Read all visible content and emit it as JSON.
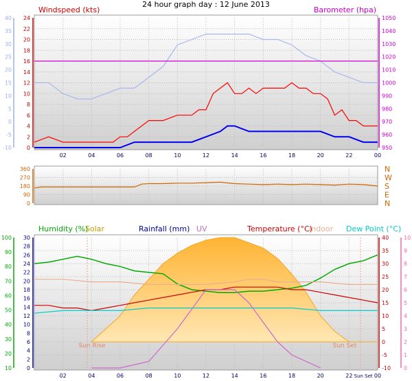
{
  "header": {
    "title": "24 hour graph day : 12 June 2013"
  },
  "chart_data": [
    {
      "panel": "wind",
      "type": "line",
      "left_axis": {
        "label": "Windspeed (kts)",
        "color": "#cc0000",
        "ticks": [
          0,
          2,
          4,
          6,
          8,
          10,
          12,
          14,
          16,
          18,
          20,
          22,
          24
        ]
      },
      "far_left_axis": {
        "color": "#9bb0e8",
        "ticks": [
          -10,
          -5,
          0,
          5,
          10,
          15,
          20,
          25,
          30,
          35,
          40
        ]
      },
      "right_axis": {
        "label": "Barometer (hpa)",
        "color": "#cc00cc",
        "ticks": [
          950,
          960,
          970,
          980,
          990,
          1000,
          1010,
          1020,
          1030,
          1040,
          1050
        ]
      },
      "x_ticks": [
        "02",
        "04",
        "06",
        "08",
        "10",
        "12",
        "14",
        "16",
        "18",
        "20",
        "22",
        "00"
      ],
      "series": [
        {
          "color": "#ff0000",
          "x": [
            0,
            1,
            2,
            3,
            4,
            5,
            5.5,
            6,
            6.5,
            7,
            7.5,
            8,
            9,
            10,
            11,
            11.5,
            12,
            12.5,
            13,
            13.5,
            14,
            14.5,
            15,
            15.5,
            16,
            16.5,
            17,
            17.5,
            18,
            18.5,
            19,
            19.5,
            20,
            20.5,
            21,
            21.5,
            22,
            22.5,
            23,
            23.5,
            24
          ],
          "y": [
            1,
            2,
            1,
            1,
            1,
            1,
            1,
            2,
            2,
            3,
            4,
            5,
            5,
            6,
            6,
            7,
            7,
            10,
            11,
            12,
            10,
            10,
            11,
            10,
            11,
            11,
            11,
            11,
            12,
            11,
            11,
            10,
            10,
            9,
            6,
            7,
            5,
            5,
            4,
            4,
            4
          ]
        },
        {
          "color": "#0000ee",
          "x": [
            0,
            2,
            4,
            5,
            6,
            7,
            8,
            9,
            10,
            11,
            12,
            13,
            13.5,
            14,
            15,
            16,
            17,
            18,
            19,
            20,
            21,
            22,
            23,
            24
          ],
          "y": [
            0,
            0,
            0,
            0,
            0,
            1,
            1,
            1,
            1,
            1,
            2,
            3,
            4,
            4,
            3,
            3,
            3,
            3,
            3,
            3,
            2,
            2,
            1,
            1
          ]
        },
        {
          "color": "#a8b8ec",
          "x": [
            0,
            1,
            2,
            3,
            4,
            5,
            6,
            7,
            8,
            9,
            10,
            11,
            12,
            13,
            14,
            15,
            16,
            17,
            18,
            19,
            20,
            21,
            22,
            23,
            24
          ],
          "y": [
            12,
            12,
            10,
            9,
            9,
            10,
            11,
            11,
            13,
            15,
            19,
            20,
            21,
            21,
            21,
            21,
            20,
            20,
            19,
            17,
            16,
            14,
            13,
            12,
            12
          ]
        },
        {
          "color": "#cc00cc",
          "x": [
            0,
            24
          ],
          "y": [
            16,
            16
          ]
        }
      ]
    },
    {
      "panel": "direction",
      "type": "line",
      "left_ticks": [
        0,
        90,
        180,
        270,
        360
      ],
      "compass": [
        "N",
        "W",
        "S",
        "E",
        "N"
      ],
      "series": [
        {
          "color": "#cc6600",
          "x": [
            0,
            0.5,
            1,
            2,
            3,
            4,
            5,
            6,
            7,
            7.5,
            8,
            9,
            10,
            11,
            12,
            13,
            14,
            15,
            16,
            17,
            18,
            19,
            20,
            21,
            22,
            23,
            24
          ],
          "y": [
            160,
            170,
            170,
            170,
            170,
            170,
            170,
            170,
            170,
            200,
            205,
            205,
            210,
            210,
            215,
            220,
            205,
            200,
            195,
            200,
            195,
            200,
            195,
            190,
            200,
            195,
            180
          ]
        }
      ]
    },
    {
      "panel": "temp",
      "type": "line",
      "legend": [
        "Humidity (%)",
        "Solar",
        "Rainfall (mm)",
        "UV",
        "Temperature (°C)",
        "Indoor",
        "Dew Point (°C)"
      ],
      "legend_colors": [
        "#00aa00",
        "#cc9900",
        "#000099",
        "#cc66cc",
        "#cc0000",
        "#e8b08f",
        "#00cccc"
      ],
      "humidity_ticks": [
        10,
        20,
        30,
        40,
        50,
        60,
        70,
        80,
        90,
        100
      ],
      "rain_ticks": [
        0,
        2,
        4,
        6,
        8,
        10,
        12,
        14,
        16,
        18,
        20,
        22,
        24,
        26,
        28,
        30
      ],
      "temp_ticks": [
        -10,
        -5,
        0,
        5,
        10,
        15,
        20,
        25,
        30,
        35,
        40
      ],
      "uv_ticks": [
        0,
        1,
        2,
        3,
        4,
        5,
        6,
        7,
        8,
        9,
        10
      ],
      "x_ticks": [
        "02",
        "04",
        "06",
        "08",
        "10",
        "12",
        "14",
        "16",
        "18",
        "20",
        "22",
        "Sun Set",
        "00"
      ],
      "sunrise_label": "Sun Rise",
      "sunset_label": "Sun Set",
      "series": [
        {
          "name": "Humidity (%)",
          "color": "#00aa00",
          "x": [
            0,
            1,
            2,
            3,
            4,
            5,
            6,
            7,
            8,
            9,
            10,
            11,
            12,
            13,
            14,
            15,
            16,
            17,
            18,
            19,
            20,
            21,
            22,
            23,
            24
          ],
          "y": [
            82,
            83,
            85,
            87,
            85,
            82,
            80,
            77,
            76,
            75,
            68,
            64,
            63,
            62,
            62,
            63,
            63,
            64,
            65,
            67,
            72,
            78,
            82,
            84,
            88
          ]
        },
        {
          "name": "Temperature (°C)",
          "color": "#cc0000",
          "x": [
            0,
            1,
            2,
            3,
            4,
            5,
            6,
            7,
            8,
            9,
            10,
            11,
            12,
            13,
            14,
            15,
            16,
            17,
            18,
            19,
            20,
            21,
            22,
            23,
            24
          ],
          "y": [
            14,
            14,
            13,
            13,
            12,
            13,
            14,
            15,
            16,
            17,
            18,
            19,
            20,
            20,
            21,
            21,
            21,
            21,
            20,
            20,
            19,
            18,
            17,
            16,
            15
          ]
        },
        {
          "name": "Indoor",
          "color": "#e8b08f",
          "x": [
            0,
            2,
            4,
            6,
            8,
            10,
            12,
            14,
            15,
            16,
            17,
            18,
            20,
            22,
            24
          ],
          "y": [
            24,
            24,
            23,
            23,
            22,
            22,
            22,
            23,
            24,
            24,
            23,
            23,
            23,
            22,
            22
          ]
        },
        {
          "name": "Dew Point (°C)",
          "color": "#00cccc",
          "x": [
            0,
            2,
            4,
            6,
            8,
            10,
            12,
            14,
            16,
            18,
            20,
            22,
            24
          ],
          "y": [
            11,
            12,
            12,
            12,
            13,
            13,
            13,
            13,
            13,
            13,
            12,
            12,
            12
          ]
        },
        {
          "name": "Solar",
          "color": "#f5b24a",
          "x": [
            4,
            5,
            6,
            7,
            8,
            9,
            10,
            11,
            12,
            13,
            14,
            15,
            16,
            17,
            18,
            19,
            20,
            21,
            22,
            23,
            24
          ],
          "y": [
            0,
            5,
            10,
            18,
            24,
            30,
            34,
            37,
            39,
            40,
            40,
            38,
            36,
            32,
            26,
            19,
            10,
            4,
            0,
            0,
            0
          ]
        },
        {
          "name": "UV",
          "color": "#cc66cc",
          "x": [
            4,
            6,
            8,
            10,
            11,
            12,
            13,
            14,
            15,
            16,
            17,
            18,
            20
          ],
          "y": [
            0,
            0,
            0.5,
            3,
            4.5,
            6,
            6,
            6,
            5,
            3.5,
            2,
            1,
            0
          ]
        }
      ]
    }
  ]
}
